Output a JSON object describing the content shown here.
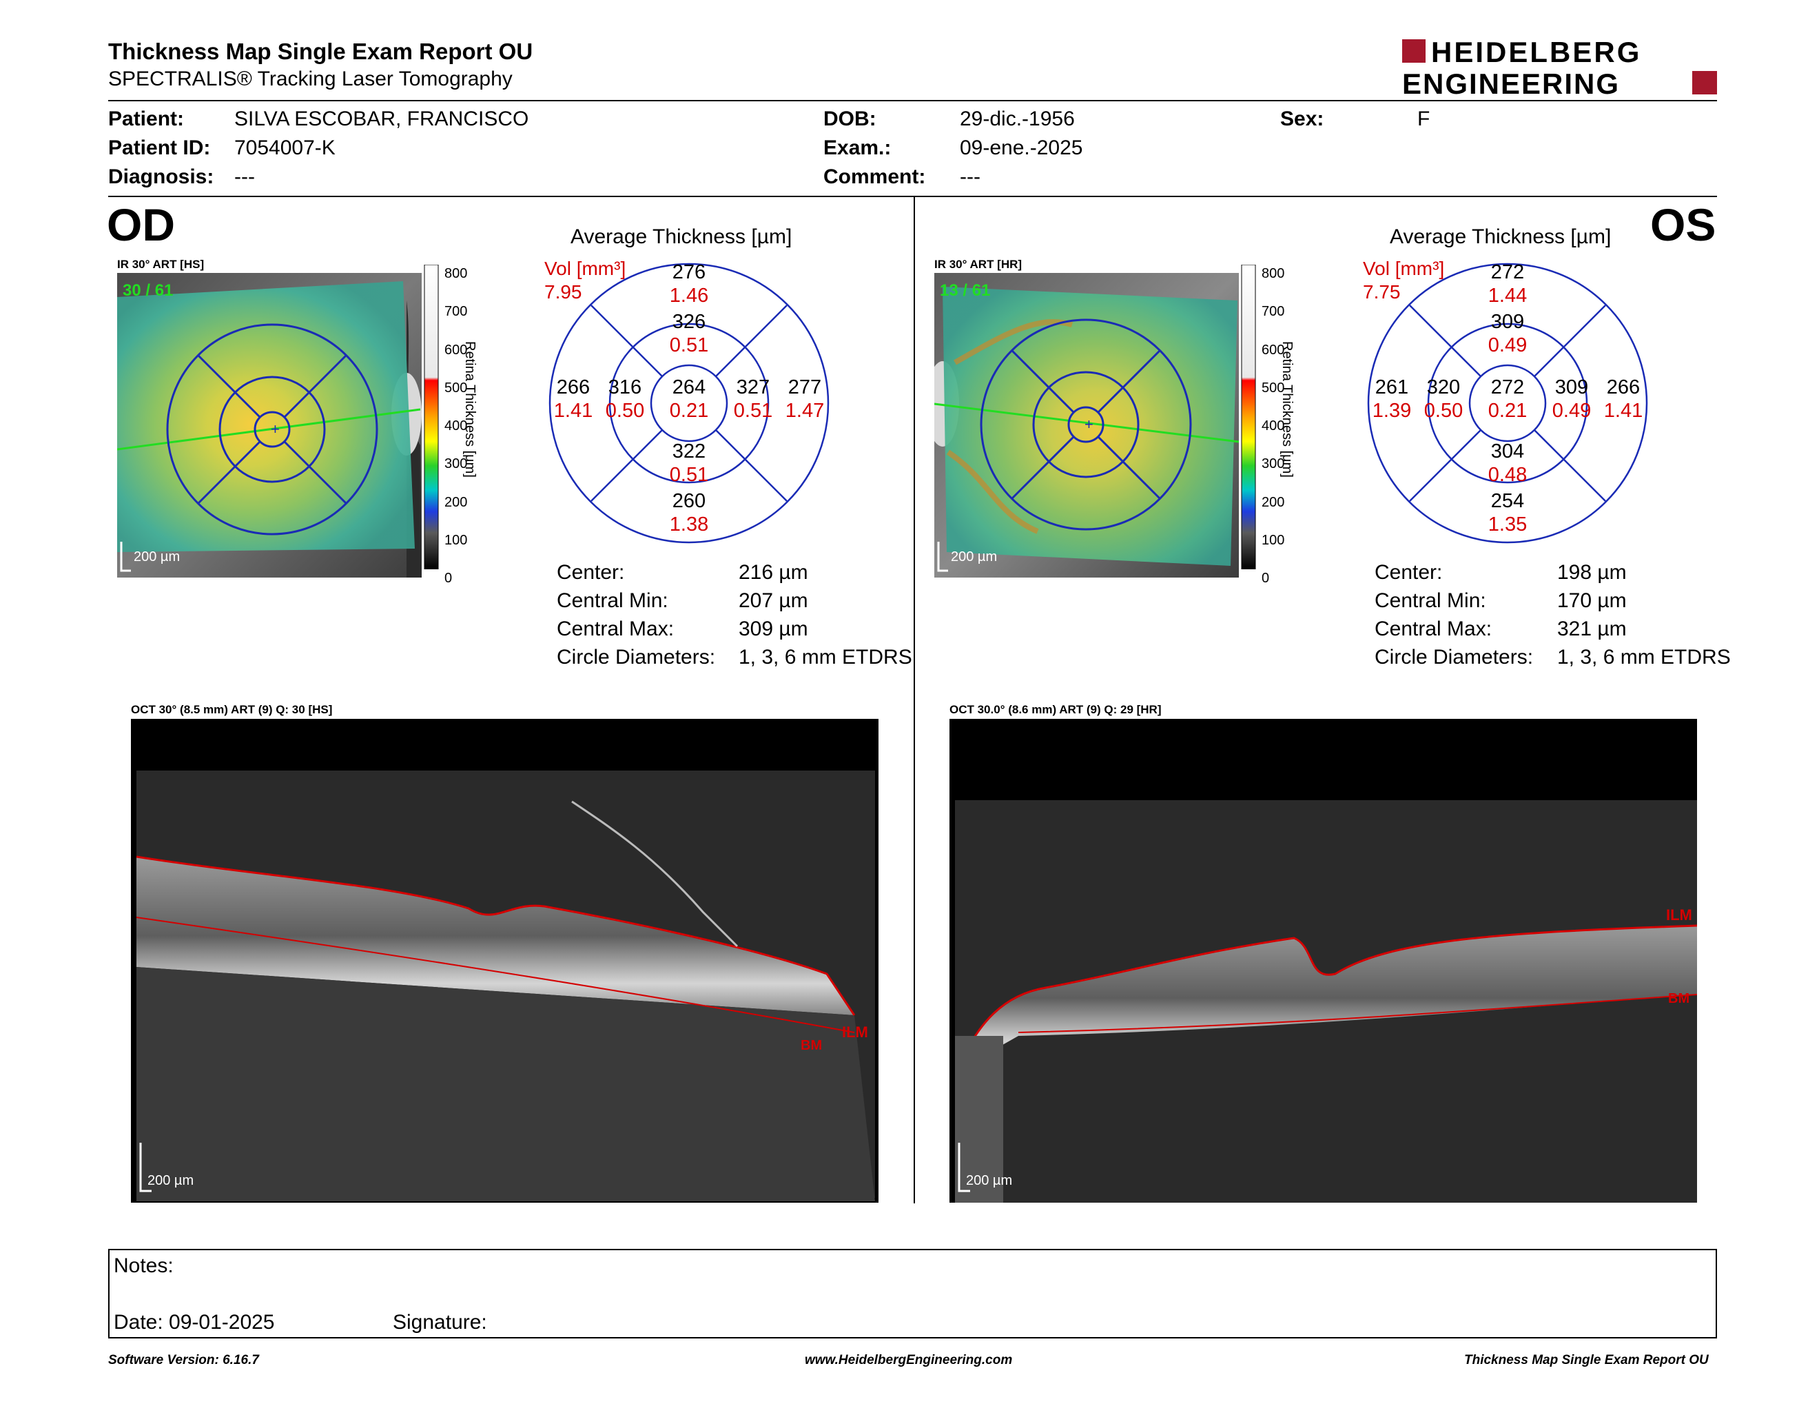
{
  "header": {
    "title": "Thickness Map Single Exam Report OU",
    "subtitle": "SPECTRALIS® Tracking Laser Tomography",
    "logo_line1": "HEIDELBERG",
    "logo_line2": "ENGINEERING",
    "brand_color": "#a4182c"
  },
  "patient": {
    "patient_label": "Patient:",
    "patient_value": "SILVA ESCOBAR, FRANCISCO",
    "id_label": "Patient ID:",
    "id_value": "7054007-K",
    "diagnosis_label": "Diagnosis:",
    "diagnosis_value": "---",
    "dob_label": "DOB:",
    "dob_value": "29-dic.-1956",
    "exam_label": "Exam.:",
    "exam_value": "09-ene.-2025",
    "comment_label": "Comment:",
    "comment_value": "---",
    "sex_label": "Sex:",
    "sex_value": "F"
  },
  "od": {
    "eye": "OD",
    "ir_caption": "IR 30° ART [HS]",
    "frames": "30 / 61",
    "scalebar": "200 µm",
    "colorbar_ticks": [
      "800",
      "700",
      "600",
      "500",
      "400",
      "300",
      "200",
      "100",
      "0"
    ],
    "colorbar_label": "Retina Thickness [µm]",
    "avg_title": "Average Thickness [µm]",
    "vol_label": "Vol [mm³]",
    "vol_total": "7.95",
    "sectors": {
      "outer_sup": {
        "t": "276",
        "v": "1.46"
      },
      "inner_sup": {
        "t": "326",
        "v": "0.51"
      },
      "outer_nas": {
        "t": "266",
        "v": "1.41"
      },
      "inner_nas": {
        "t": "316",
        "v": "0.50"
      },
      "center": {
        "t": "264",
        "v": "0.21"
      },
      "inner_tmp": {
        "t": "327",
        "v": "0.51"
      },
      "outer_tmp": {
        "t": "277",
        "v": "1.47"
      },
      "inner_inf": {
        "t": "322",
        "v": "0.51"
      },
      "outer_inf": {
        "t": "260",
        "v": "1.38"
      }
    },
    "stats": [
      {
        "label": "Center:",
        "value": "216 µm"
      },
      {
        "label": "Central Min:",
        "value": "207 µm"
      },
      {
        "label": "Central Max:",
        "value": "309 µm"
      },
      {
        "label": "Circle Diameters:",
        "value": "1, 3, 6 mm ETDRS"
      }
    ],
    "oct_caption": "OCT 30° (8.5 mm) ART (9) Q: 30 [HS]",
    "oct_scalebar": "200 µm",
    "ilm": "ILM",
    "bm": "BM"
  },
  "os": {
    "eye": "OS",
    "ir_caption": "IR 30° ART [HR]",
    "frames": "13 / 61",
    "scalebar": "200 µm",
    "colorbar_ticks": [
      "800",
      "700",
      "600",
      "500",
      "400",
      "300",
      "200",
      "100",
      "0"
    ],
    "colorbar_label": "Retina Thickness [µm]",
    "avg_title": "Average Thickness [µm]",
    "vol_label": "Vol [mm³]",
    "vol_total": "7.75",
    "sectors": {
      "outer_sup": {
        "t": "272",
        "v": "1.44"
      },
      "inner_sup": {
        "t": "309",
        "v": "0.49"
      },
      "outer_nas": {
        "t": "261",
        "v": "1.39"
      },
      "inner_nas": {
        "t": "320",
        "v": "0.50"
      },
      "center": {
        "t": "272",
        "v": "0.21"
      },
      "inner_tmp": {
        "t": "309",
        "v": "0.49"
      },
      "outer_tmp": {
        "t": "266",
        "v": "1.41"
      },
      "inner_inf": {
        "t": "304",
        "v": "0.48"
      },
      "outer_inf": {
        "t": "254",
        "v": "1.35"
      }
    },
    "stats": [
      {
        "label": "Center:",
        "value": "198 µm"
      },
      {
        "label": "Central Min:",
        "value": "170 µm"
      },
      {
        "label": "Central Max:",
        "value": "321 µm"
      },
      {
        "label": "Circle Diameters:",
        "value": "1, 3, 6 mm ETDRS"
      }
    ],
    "oct_caption": "OCT 30.0° (8.6 mm) ART (9) Q: 29 [HR]",
    "oct_scalebar": "200 µm",
    "ilm": "ILM",
    "bm": "BM"
  },
  "notes": {
    "notes_label": "Notes:",
    "date_label": "Date: 09-01-2025",
    "signature_label": "Signature:"
  },
  "footer": {
    "software": "Software Version: 6.16.7",
    "website": "www.HeidelbergEngineering.com",
    "report": "Thickness Map Single Exam Report OU"
  }
}
